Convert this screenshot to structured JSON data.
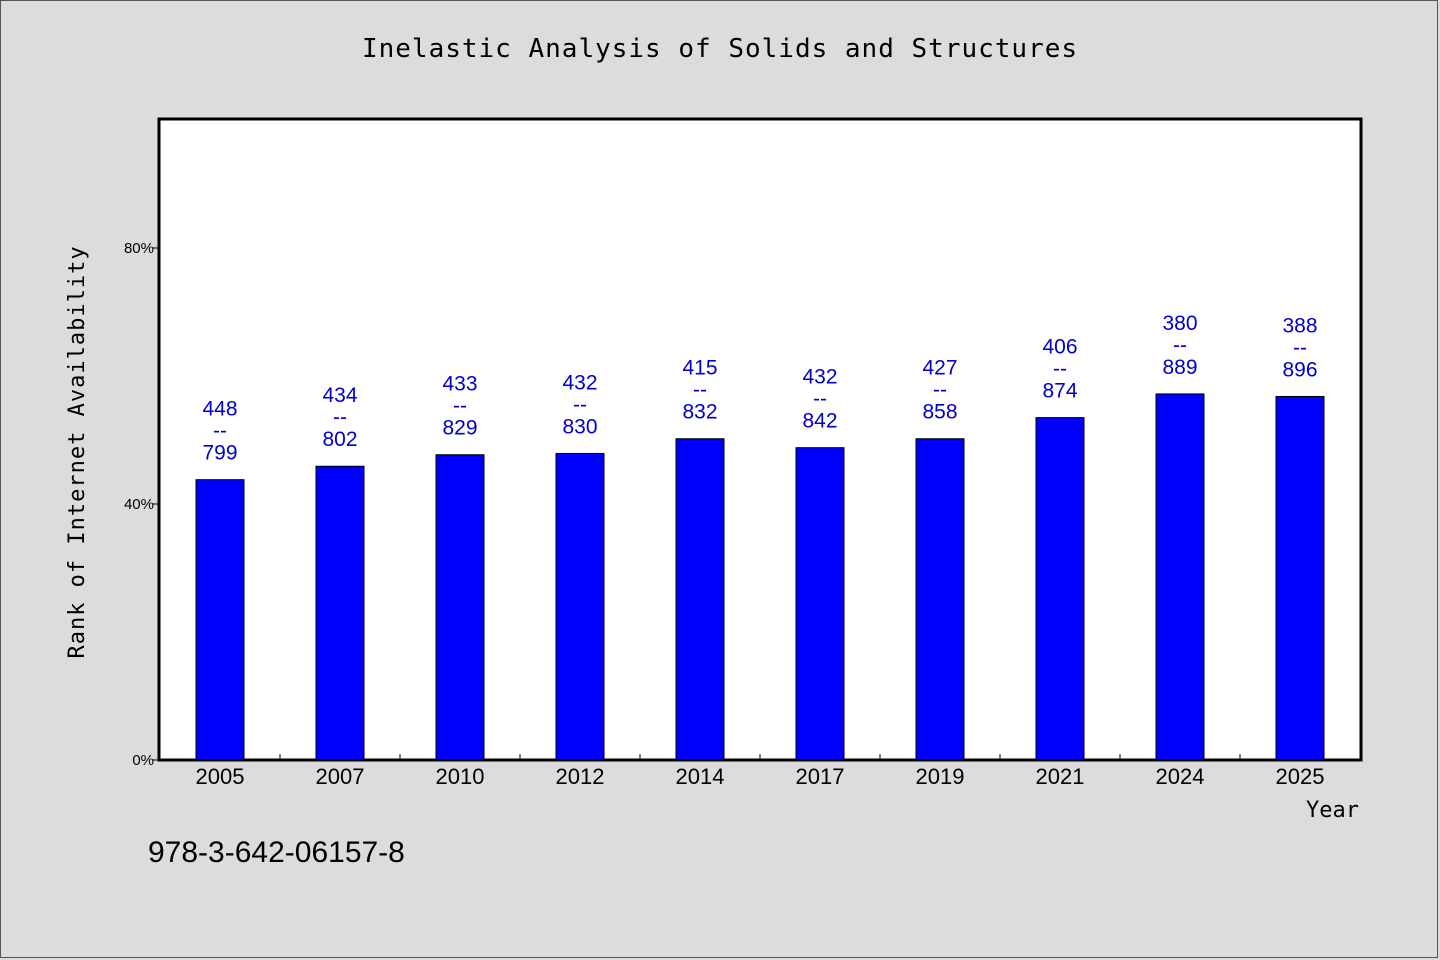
{
  "chart_data": {
    "type": "bar",
    "title": "Inelastic Analysis of Solids and Structures",
    "xlabel": "Year",
    "ylabel": "Rank of Internet Availability",
    "categories": [
      "2005",
      "2007",
      "2010",
      "2012",
      "2014",
      "2017",
      "2019",
      "2021",
      "2024",
      "2025"
    ],
    "values": [
      0.438,
      0.459,
      0.477,
      0.479,
      0.502,
      0.488,
      0.502,
      0.535,
      0.572,
      0.568
    ],
    "data_labels": [
      [
        "448",
        "--",
        "799"
      ],
      [
        "434",
        "--",
        "802"
      ],
      [
        "433",
        "--",
        "829"
      ],
      [
        "432",
        "--",
        "830"
      ],
      [
        "415",
        "--",
        "832"
      ],
      [
        "432",
        "--",
        "842"
      ],
      [
        "427",
        "--",
        "858"
      ],
      [
        "406",
        "--",
        "874"
      ],
      [
        "380",
        "--",
        "889"
      ],
      [
        "388",
        "--",
        "896"
      ]
    ],
    "ylim": [
      0,
      1.0
    ],
    "yticks": [
      0,
      0.4,
      0.8
    ],
    "ytick_labels": [
      "0%",
      "40%",
      "80%"
    ],
    "grid": false,
    "legend": "none",
    "bar_color": "#0000ff",
    "label_color": "#0000cc"
  },
  "footer_text": "978-3-642-06157-8"
}
